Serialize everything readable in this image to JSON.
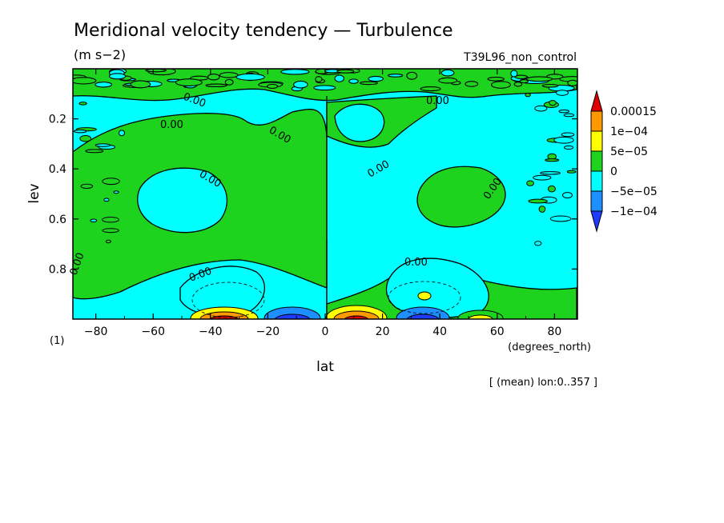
{
  "chart_data": {
    "type": "heatmap",
    "title": "Meridional velocity tendency — Turbulence",
    "units": "(m s−2)",
    "experiment": "T39L96_non_control",
    "xlabel": "lat",
    "x_units": "(degrees_north)",
    "ylabel": "lev",
    "y_units": "(1)",
    "footnote": "[ (mean) lon:0..357 ]",
    "xlim": [
      -88,
      88
    ],
    "ylim": [
      0.0,
      1.0
    ],
    "y_inverted": true,
    "x_ticks": [
      "−80",
      "−60",
      "−40",
      "−20",
      "0",
      "20",
      "40",
      "60",
      "80"
    ],
    "x_tick_values": [
      -80,
      -60,
      -40,
      -20,
      0,
      20,
      40,
      60,
      80
    ],
    "y_ticks": [
      "0.2",
      "0.4",
      "0.6",
      "0.8"
    ],
    "y_tick_values": [
      0.2,
      0.4,
      0.6,
      0.8
    ],
    "contour_labels": [
      "0.00",
      "0.00",
      "0.00",
      "0.00",
      "0.00",
      "0.00",
      "0.00",
      "0.00",
      "0.00",
      "0.00"
    ],
    "colorbar": {
      "labels": [
        "0.00015",
        "1e−04",
        "5e−05",
        "0",
        "−5e−05",
        "−1e−04"
      ],
      "levels": [
        0.00015,
        0.0001,
        5e-05,
        0,
        -5e-05,
        -0.0001
      ],
      "colors": [
        "#e00000",
        "#ff9900",
        "#ffff00",
        "#1ed31e",
        "#00ffff",
        "#1e8fff",
        "#1e3cff"
      ]
    },
    "regions": [
      {
        "kind": "negative",
        "lat": -70,
        "lev": 0.25
      },
      {
        "kind": "negative",
        "lat": -42,
        "lev": 0.49
      },
      {
        "kind": "negative",
        "lat": 10,
        "lev": 0.5
      },
      {
        "kind": "negative",
        "lat": 17,
        "lev": 0.22
      },
      {
        "kind": "positive",
        "lat": 50,
        "lev": 0.48
      },
      {
        "kind": "positive",
        "lat": -30,
        "lev": 0.22
      },
      {
        "kind": "extreme-positive",
        "lat": -35,
        "lev": 0.99
      },
      {
        "kind": "extreme-negative",
        "lat": -12,
        "lev": 0.99
      },
      {
        "kind": "extreme-positive",
        "lat": 10,
        "lev": 0.99
      },
      {
        "kind": "extreme-negative",
        "lat": 35,
        "lev": 0.99
      },
      {
        "kind": "positive",
        "lat": 55,
        "lev": 0.99
      }
    ]
  }
}
